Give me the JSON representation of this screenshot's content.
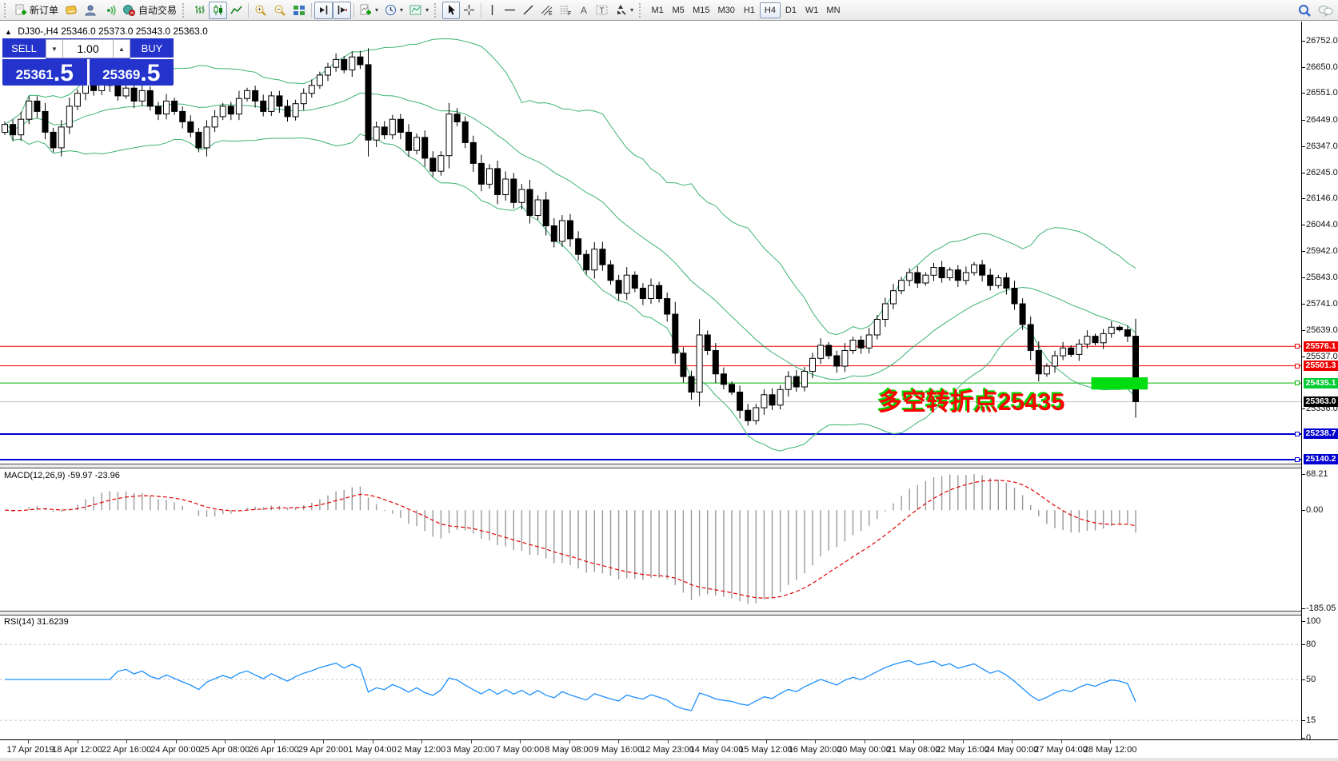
{
  "toolbar": {
    "new_order_label": "新订单",
    "autotrade_label": "自动交易",
    "timeframes": [
      "M1",
      "M5",
      "M15",
      "M30",
      "H1",
      "H4",
      "D1",
      "W1",
      "MN"
    ],
    "active_timeframe": "H4"
  },
  "chart_title": {
    "symbol_period": "DJ30-,H4",
    "ohlc_text": "25346.0 25373.0 25343.0 25363.0"
  },
  "trade_panel": {
    "sell_label": "SELL",
    "buy_label": "BUY",
    "volume": "1.00",
    "sell_price_main": "25361",
    "sell_price_pip": ".5",
    "buy_price_main": "25369",
    "buy_price_pip": ".5"
  },
  "chart_data": {
    "type": "candlestick",
    "symbol": "DJ30-",
    "period": "H4",
    "displayed_ohlc": {
      "open": 25346.0,
      "high": 25373.0,
      "low": 25343.0,
      "close": 25363.0
    },
    "first_open": 26400,
    "closes": [
      26430,
      26390,
      26450,
      26520,
      26480,
      26400,
      26340,
      26420,
      26500,
      26550,
      26600,
      26560,
      26620,
      26580,
      26540,
      26570,
      26520,
      26560,
      26500,
      26470,
      26520,
      26480,
      26440,
      26400,
      26340,
      26420,
      26460,
      26500,
      26470,
      26530,
      26560,
      26520,
      26480,
      26540,
      26500,
      26460,
      26510,
      26550,
      26580,
      26620,
      26650,
      26680,
      26640,
      26690,
      26660,
      26370,
      26420,
      26390,
      26450,
      26400,
      26330,
      26380,
      26300,
      26250,
      26310,
      26470,
      26440,
      26360,
      26280,
      26200,
      26260,
      26160,
      26220,
      26130,
      26180,
      26080,
      26140,
      26040,
      25980,
      26060,
      25990,
      25930,
      25870,
      25950,
      25890,
      25830,
      25780,
      25850,
      25800,
      25760,
      25810,
      25760,
      25700,
      25550,
      25460,
      25400,
      25620,
      25560,
      25470,
      25430,
      25400,
      25330,
      25290,
      25340,
      25390,
      25350,
      25410,
      25460,
      25420,
      25480,
      25530,
      25580,
      25540,
      25500,
      25560,
      25600,
      25570,
      25620,
      25680,
      25740,
      25790,
      25830,
      25860,
      25820,
      25850,
      25880,
      25840,
      25870,
      25830,
      25860,
      25890,
      25850,
      25810,
      25840,
      25800,
      25740,
      25660,
      25560,
      25470,
      25500,
      25540,
      25570,
      25545,
      25585,
      25615,
      25590,
      25625,
      25650,
      25640,
      25615,
      25363
    ],
    "bollinger": {
      "period": 20,
      "deviation": 2,
      "color": "#3CB371"
    },
    "price_axis_ticks": [
      "26752.0",
      "26650.0",
      "26551.0",
      "26449.0",
      "26347.0",
      "26245.0",
      "26146.0",
      "26044.0",
      "25942.0",
      "25843.0",
      "25741.0",
      "25639.0",
      "25537.0",
      "25336.0"
    ],
    "hlines": [
      {
        "level": 25576.1,
        "label": "25576.1",
        "color": "#ee0000",
        "width": 1
      },
      {
        "level": 25501.3,
        "label": "25501.3",
        "color": "#ee0000",
        "width": 1
      },
      {
        "level": 25435.1,
        "label": "25435.1",
        "color": "#00b400",
        "width": 1
      },
      {
        "level": 25363.0,
        "label": "25363.0",
        "color": "#c0c0c0",
        "width": 1
      },
      {
        "level": 25238.7,
        "label": "25238.7",
        "color": "#0000d0",
        "width": 2
      },
      {
        "level": 25140.2,
        "label": "25140.2",
        "color": "#0000d0",
        "width": 2
      }
    ],
    "chip_colors": [
      "#ee0000",
      "#ee0000",
      "#00cc33",
      "#000000",
      "#0000d0",
      "#0000d0"
    ],
    "current_price": 25363.0,
    "highlight_rect": {
      "price_top": 25457,
      "price_bottom": 25410,
      "from_bar": 135,
      "to_bar": 141,
      "color": "#00dd11"
    },
    "annotation": {
      "text": "多空转折点25435",
      "color": "#ff0000",
      "shadow_color": "#00d800"
    },
    "indicators": [
      {
        "name": "MACD",
        "label": "MACD(12,26,9) -59.97 -23.96",
        "fast": 12,
        "slow": 26,
        "signal": 9,
        "displayed_values": [
          -59.97,
          -23.96
        ],
        "axis_ticks": [
          "68.21",
          "0.00",
          "-185.05"
        ],
        "axis_max": 68.21,
        "axis_min": -185.05,
        "histogram_color": "#9a9a9a",
        "signal_color": "#e00000"
      },
      {
        "name": "RSI",
        "label": "RSI(14) 31.6239",
        "period": 14,
        "displayed_value": 31.6239,
        "axis_ticks": [
          "100",
          "80",
          "50",
          "15",
          "0"
        ],
        "levels": [
          80,
          50,
          15
        ],
        "color": "#1e90ff"
      }
    ],
    "x_axis_dates": [
      "17 Apr 2019",
      "18 Apr 12:00",
      "22 Apr 16:00",
      "24 Apr 00:00",
      "25 Apr 08:00",
      "26 Apr 16:00",
      "29 Apr 20:00",
      "1 May 04:00",
      "2 May 12:00",
      "3 May 20:00",
      "7 May 00:00",
      "8 May 08:00",
      "9 May 16:00",
      "12 May 23:00",
      "14 May 04:00",
      "15 May 12:00",
      "16 May 20:00",
      "20 May 00:00",
      "21 May 08:00",
      "22 May 16:00",
      "24 May 00:00",
      "27 May 04:00",
      "28 May 12:00"
    ]
  }
}
